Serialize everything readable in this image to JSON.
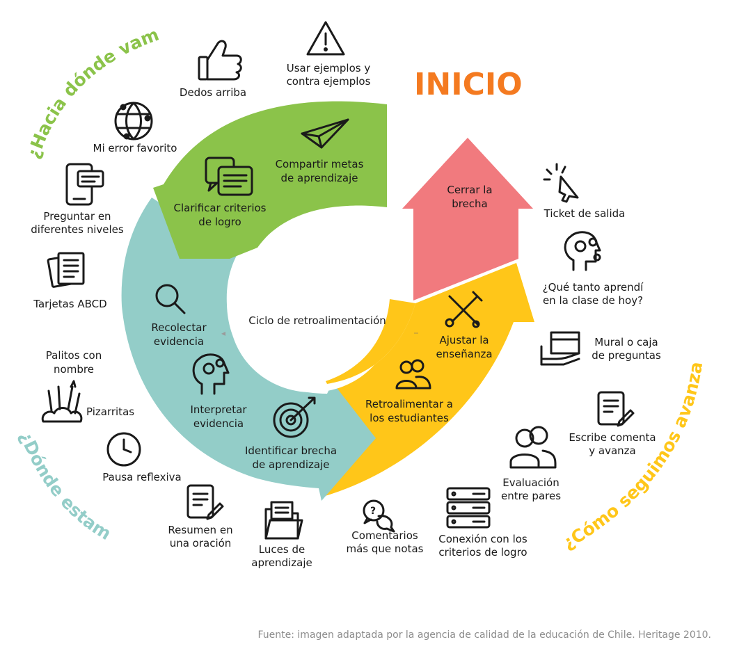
{
  "title": "INICIO",
  "center_label": "Ciclo de retroalimentación",
  "colors": {
    "green": "#8bc34a",
    "teal": "#93cdc8",
    "yellow": "#ffc619",
    "red": "#f17a7e",
    "orange": "#f47a20",
    "source_gray": "#8c8c8c"
  },
  "curved_headings": {
    "hacia": "¿Hacia dónde vamos?",
    "donde": "¿Dónde estamos?",
    "como": "¿Cómo seguimos avanzando?"
  },
  "green_arc": {
    "step1": [
      "Compartir metas",
      "de aprendizaje"
    ],
    "step2": [
      "Clarificar criterios",
      "de logro"
    ]
  },
  "teal_arc": {
    "step1": [
      "Recolectar",
      "evidencia"
    ],
    "step2": [
      "Interpretar",
      "evidencia"
    ],
    "step3": [
      "Identificar brecha",
      "de aprendizaje"
    ]
  },
  "yellow_arc": {
    "step1": [
      "Ajustar la",
      "enseñanza"
    ],
    "step2": [
      "Retroalimentar a",
      "los estudiantes"
    ]
  },
  "red_arrow": {
    "label": [
      "Cerrar la",
      "brecha"
    ]
  },
  "strategies": {
    "ejemplos": {
      "label": [
        "Usar ejemplos y",
        "contra ejemplos"
      ],
      "icon": "warning-icon"
    },
    "dedos": {
      "label": [
        "Dedos arriba"
      ],
      "icon": "thumbs-up-icon"
    },
    "error": {
      "label": [
        "Mi error favorito"
      ],
      "icon": "network-globe-icon"
    },
    "preguntar": {
      "label": [
        "Preguntar en",
        "diferentes niveles"
      ],
      "icon": "phone-chat-icon"
    },
    "tarjetas": {
      "label": [
        "Tarjetas ABCD"
      ],
      "icon": "cards-icon"
    },
    "palitos": {
      "label": [
        "Palitos con",
        "nombre"
      ]
    },
    "pizarritas": {
      "label": [
        "Pizarritas"
      ],
      "icon": "art-supplies-icon"
    },
    "pausa": {
      "label": [
        "Pausa reflexiva"
      ],
      "icon": "clock-icon"
    },
    "resumen": {
      "label": [
        "Resumen en",
        "una oración"
      ],
      "icon": "document-edit-icon"
    },
    "luces": {
      "label": [
        "Luces de",
        "aprendizaje"
      ],
      "icon": "folder-icon"
    },
    "comentarios": {
      "label": [
        "Comentarios",
        "más que notas"
      ],
      "icon": "chat-question-icon"
    },
    "conexion": {
      "label": [
        "Conexión con los",
        "criterios de logro"
      ],
      "icon": "server-icon"
    },
    "evaluacion": {
      "label": [
        "Evaluación",
        "entre pares"
      ],
      "icon": "people-icon"
    },
    "escribe": {
      "label": [
        "Escribe comenta",
        "y avanza"
      ],
      "icon": "document-edit-icon"
    },
    "mural": {
      "label": [
        "Mural o caja",
        "de preguntas"
      ],
      "icon": "box-hand-icon"
    },
    "quetanto": {
      "label": [
        "¿Qué tanto aprendí",
        "en la clase de hoy?"
      ],
      "icon": "head-gears-icon"
    },
    "ticket": {
      "label": [
        "Ticket de salida"
      ],
      "icon": "cursor-click-icon"
    }
  },
  "source": "Fuente: imagen adaptada por la agencia de calidad de la educación de Chile. Heritage 2010."
}
